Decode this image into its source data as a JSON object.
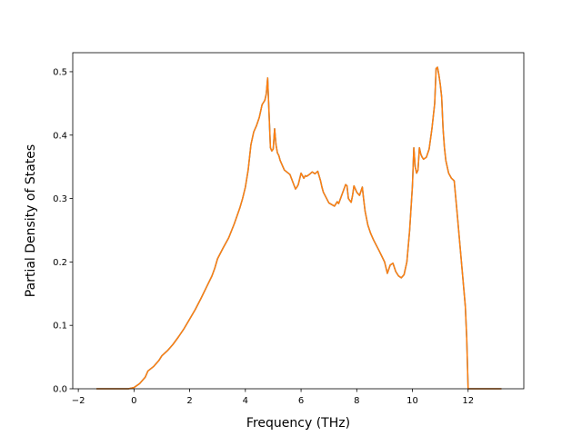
{
  "chart_data": {
    "type": "line",
    "title": "",
    "xlabel": "Frequency (THz)",
    "ylabel": "Partial Density of States",
    "xlim": [
      -2.2,
      14.0
    ],
    "ylim": [
      0.0,
      0.53
    ],
    "xticks": [
      -2,
      0,
      2,
      4,
      6,
      8,
      10,
      12
    ],
    "xtick_labels": [
      "−2",
      "0",
      "2",
      "4",
      "6",
      "8",
      "10",
      "12"
    ],
    "yticks": [
      0.0,
      0.1,
      0.2,
      0.3,
      0.4,
      0.5
    ],
    "ytick_labels": [
      "0.0",
      "0.1",
      "0.2",
      "0.3",
      "0.4",
      "0.5"
    ],
    "grid": false,
    "legend": "none",
    "colors": {
      "series_back": "#1f77b4",
      "series_front": "#ff7f0e",
      "axes": "#000000"
    },
    "series": [
      {
        "x": [
          -1.35,
          -0.2,
          0.0,
          0.2,
          0.4,
          0.5,
          0.7,
          0.9,
          1.0,
          1.2,
          1.4,
          1.6,
          1.8,
          2.0,
          2.2,
          2.4,
          2.6,
          2.8,
          2.9,
          3.0,
          3.2,
          3.4,
          3.6,
          3.8,
          3.9,
          4.0,
          4.1,
          4.2,
          4.3,
          4.4,
          4.5,
          4.6,
          4.7,
          4.75,
          4.8,
          4.9,
          4.95,
          5.0,
          5.05,
          5.1,
          5.15,
          5.2,
          5.25,
          5.3,
          5.4,
          5.6,
          5.8,
          5.85,
          5.9,
          6.0,
          6.1,
          6.15,
          6.2,
          6.3,
          6.4,
          6.5,
          6.6,
          6.7,
          6.75,
          6.8,
          7.0,
          7.2,
          7.3,
          7.35,
          7.4,
          7.5,
          7.6,
          7.65,
          7.7,
          7.8,
          7.85,
          7.9,
          8.0,
          8.1,
          8.2,
          8.25,
          8.3,
          8.4,
          8.5,
          8.6,
          8.8,
          9.0,
          9.1,
          9.2,
          9.3,
          9.4,
          9.5,
          9.6,
          9.7,
          9.8,
          9.9,
          10.0,
          10.05,
          10.1,
          10.15,
          10.2,
          10.25,
          10.3,
          10.35,
          10.4,
          10.5,
          10.6,
          10.7,
          10.8,
          10.85,
          10.9,
          10.95,
          11.0,
          11.05,
          11.1,
          11.15,
          11.2,
          11.3,
          11.4,
          11.5,
          11.6,
          11.7,
          11.8,
          11.9,
          11.95,
          12.0,
          12.1,
          12.5,
          13.2
        ],
        "y": [
          0.0,
          0.0,
          0.002,
          0.008,
          0.018,
          0.028,
          0.035,
          0.045,
          0.052,
          0.06,
          0.07,
          0.082,
          0.095,
          0.11,
          0.125,
          0.142,
          0.16,
          0.178,
          0.19,
          0.205,
          0.222,
          0.238,
          0.26,
          0.285,
          0.3,
          0.318,
          0.345,
          0.385,
          0.405,
          0.415,
          0.428,
          0.448,
          0.455,
          0.465,
          0.49,
          0.38,
          0.375,
          0.378,
          0.41,
          0.385,
          0.372,
          0.368,
          0.36,
          0.355,
          0.345,
          0.338,
          0.315,
          0.318,
          0.322,
          0.34,
          0.332,
          0.336,
          0.335,
          0.338,
          0.342,
          0.339,
          0.343,
          0.328,
          0.318,
          0.31,
          0.293,
          0.288,
          0.295,
          0.292,
          0.298,
          0.31,
          0.322,
          0.32,
          0.3,
          0.294,
          0.305,
          0.32,
          0.31,
          0.305,
          0.318,
          0.298,
          0.28,
          0.258,
          0.245,
          0.235,
          0.218,
          0.2,
          0.182,
          0.195,
          0.198,
          0.185,
          0.178,
          0.175,
          0.18,
          0.2,
          0.25,
          0.32,
          0.38,
          0.35,
          0.34,
          0.345,
          0.38,
          0.37,
          0.365,
          0.362,
          0.365,
          0.378,
          0.41,
          0.45,
          0.505,
          0.507,
          0.495,
          0.48,
          0.46,
          0.41,
          0.38,
          0.36,
          0.34,
          0.332,
          0.328,
          0.28,
          0.23,
          0.18,
          0.13,
          0.08,
          0.0,
          0.0,
          0.0,
          0.0
        ]
      }
    ]
  }
}
